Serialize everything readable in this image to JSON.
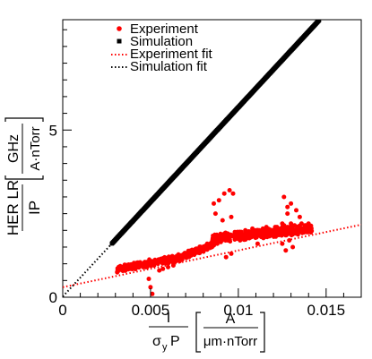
{
  "chart_data": {
    "type": "scatter",
    "title": "",
    "xlabel": {
      "numerator": "I",
      "denominator": "σ",
      "denominator_sub": "y",
      "denominator_tail": "P",
      "unit_numerator": "A",
      "unit_denominator": "μm·nTorr"
    },
    "ylabel": {
      "numerator": "HER LR",
      "denominator": "IP",
      "unit_numerator": "GHz",
      "unit_denominator": "A·nTorr"
    },
    "xlim": [
      0,
      0.017
    ],
    "ylim": [
      0,
      8.3
    ],
    "x_ticks": [
      {
        "value": 0,
        "label": "0"
      },
      {
        "value": 0.005,
        "label": "0.005"
      },
      {
        "value": 0.01,
        "label": "0.01"
      },
      {
        "value": 0.015,
        "label": "0.015"
      }
    ],
    "y_ticks": [
      {
        "value": 0,
        "label": "0"
      },
      {
        "value": 5,
        "label": "5"
      }
    ],
    "grid": false,
    "legend_position": "top-center",
    "legend": [
      {
        "label": "Experiment",
        "marker": "red-dot"
      },
      {
        "label": "Simulation",
        "marker": "black-square"
      },
      {
        "label": "Experiment fit",
        "marker": "red-dotted-line"
      },
      {
        "label": "Simulation fit",
        "marker": "black-dotted-line"
      }
    ],
    "series": [
      {
        "name": "Experiment",
        "color": "#ff0000",
        "marker": "circle",
        "x": [
          0.0031,
          0.0035,
          0.004,
          0.0044,
          0.0047,
          0.005,
          0.0052,
          0.0054,
          0.0056,
          0.0058,
          0.006,
          0.0062,
          0.0064,
          0.0066,
          0.0068,
          0.007,
          0.0072,
          0.0074,
          0.0076,
          0.0078,
          0.008,
          0.0082,
          0.0084,
          0.0086,
          0.0088,
          0.009,
          0.0092,
          0.0094,
          0.0096,
          0.0098,
          0.01,
          0.0102,
          0.0104,
          0.0106,
          0.0108,
          0.011,
          0.0112,
          0.0114,
          0.0116,
          0.0118,
          0.012,
          0.0122,
          0.0124,
          0.0126,
          0.0128,
          0.013,
          0.0132,
          0.0134,
          0.0136,
          0.0138,
          0.014,
          0.0048,
          0.0049,
          0.005,
          0.0051,
          0.0055,
          0.0057,
          0.006,
          0.0063,
          0.0086,
          0.0089,
          0.0092,
          0.0095,
          0.0097,
          0.0085,
          0.0088,
          0.009,
          0.0094,
          0.0096,
          0.0087,
          0.0091,
          0.0099,
          0.0101,
          0.0106,
          0.0113,
          0.0117,
          0.0121,
          0.0125,
          0.0128,
          0.013,
          0.0133,
          0.0135,
          0.0125,
          0.0127,
          0.0129,
          0.0131,
          0.0126,
          0.0128,
          0.013,
          0.0052,
          0.0059,
          0.0067,
          0.0073,
          0.0079,
          0.0082,
          0.01,
          0.0104,
          0.0109,
          0.0115,
          0.0119,
          0.0123,
          0.009,
          0.0093,
          0.0096,
          0.0111,
          0.0124,
          0.0133
        ],
        "y": [
          0.75,
          0.85,
          0.95,
          1.0,
          1.0,
          1.0,
          1.02,
          1.05,
          1.1,
          1.1,
          1.15,
          1.12,
          1.2,
          1.22,
          1.25,
          1.3,
          1.35,
          1.3,
          1.4,
          1.35,
          1.5,
          1.55,
          1.6,
          1.55,
          1.75,
          1.8,
          1.85,
          1.9,
          1.85,
          1.95,
          1.95,
          1.9,
          2.0,
          1.95,
          2.05,
          2.0,
          2.0,
          2.05,
          2.1,
          2.0,
          2.0,
          2.1,
          2.05,
          2.15,
          2.1,
          2.1,
          2.15,
          2.1,
          2.2,
          2.15,
          2.2,
          0.9,
          0.55,
          0.3,
          0.1,
          0.8,
          0.85,
          0.9,
          0.95,
          2.8,
          2.9,
          3.1,
          3.2,
          3.1,
          1.5,
          1.6,
          1.65,
          1.7,
          2.4,
          2.5,
          2.3,
          1.8,
          1.7,
          1.9,
          1.85,
          2.0,
          2.1,
          2.2,
          2.5,
          2.8,
          2.6,
          2.4,
          1.6,
          1.4,
          1.7,
          1.5,
          3.0,
          2.7,
          2.2,
          0.95,
          1.05,
          1.15,
          1.25,
          1.45,
          1.5,
          1.75,
          1.8,
          1.85,
          1.95,
          2.0,
          1.95,
          1.85,
          1.2,
          1.3,
          1.6,
          1.9,
          1.9
        ],
        "y_bands": [
          {
            "x_from": 0.0031,
            "x_to": 0.0069,
            "y_center_from": 0.85,
            "y_center_to": 1.2,
            "spread": 0.12
          },
          {
            "x_from": 0.0069,
            "x_to": 0.0085,
            "y_center_from": 1.25,
            "y_center_to": 1.55,
            "spread": 0.12
          },
          {
            "x_from": 0.0085,
            "x_to": 0.0142,
            "y_center_from": 1.75,
            "y_center_to": 2.05,
            "spread": 0.15
          }
        ]
      },
      {
        "name": "Simulation",
        "color": "#000000",
        "marker": "square",
        "x_range": [
          0.0028,
          0.0146
        ],
        "slope": 566.0,
        "intercept": 0.02
      }
    ],
    "fits": [
      {
        "name": "Experiment fit",
        "color": "#ff0000",
        "style": "dotted",
        "slope": 110.0,
        "intercept": 0.3
      },
      {
        "name": "Simulation fit",
        "color": "#000000",
        "style": "dotted",
        "slope": 566.0,
        "intercept": 0.02
      }
    ]
  }
}
